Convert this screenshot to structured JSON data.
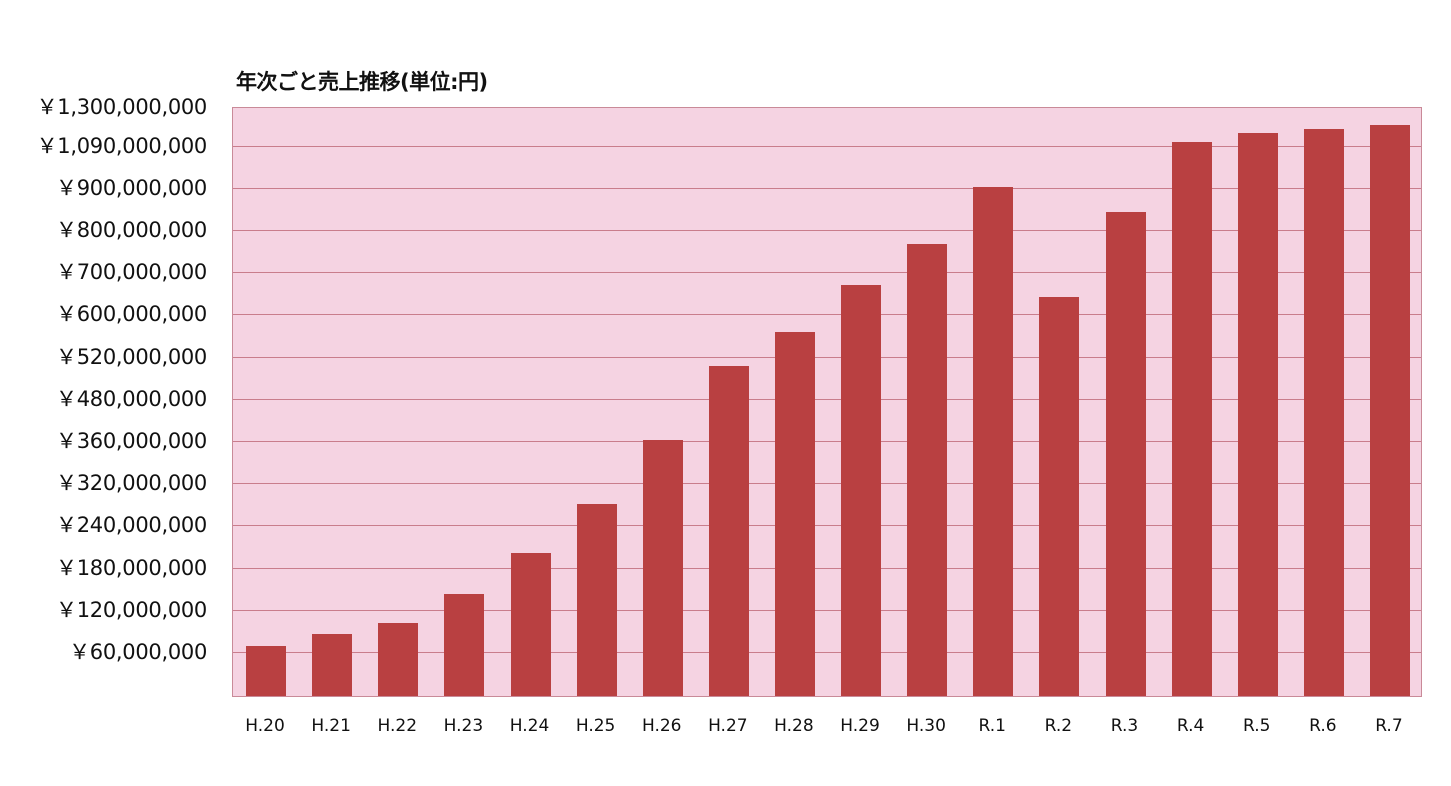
{
  "chart_data": {
    "type": "bar",
    "title": "年次ごと売上推移(単位:円)",
    "xlabel": "",
    "ylabel": "",
    "grid": true,
    "legend": null,
    "bar_color": "#b94041",
    "plot_background": "#f5d3e2",
    "gridline_color": "#c97d8c",
    "categories": [
      "H.20",
      "H.21",
      "H.22",
      "H.23",
      "H.24",
      "H.25",
      "H.26",
      "H.27",
      "H.28",
      "H.29",
      "H.30",
      "R.1",
      "R.2",
      "R.3",
      "R.4",
      "R.5",
      "R.6",
      "R.7"
    ],
    "values": [
      67000000,
      84000000,
      100000000,
      141000000,
      200000000,
      278000000,
      360000000,
      510000000,
      564000000,
      667000000,
      764000000,
      900000000,
      640000000,
      840000000,
      1106000000,
      1155000000,
      1176000000,
      1198000000
    ],
    "y_tick_labels": [
      "￥60,000,000",
      "￥120,000,000",
      "￥180,000,000",
      "￥240,000,000",
      "￥320,000,000",
      "￥360,000,000",
      "￥480,000,000",
      "￥520,000,000",
      "￥600,000,000",
      "￥700,000,000",
      "￥800,000,000",
      "￥900,000,000",
      "￥1,090,000,000",
      "￥1,300,000,000"
    ],
    "y_tick_values": [
      60000000,
      120000000,
      180000000,
      240000000,
      320000000,
      360000000,
      480000000,
      520000000,
      600000000,
      700000000,
      800000000,
      900000000,
      1090000000,
      1300000000
    ],
    "ylim": [
      0,
      1300000000
    ],
    "y_axis_note": "Gridlines evenly spaced with non-linear labels"
  }
}
